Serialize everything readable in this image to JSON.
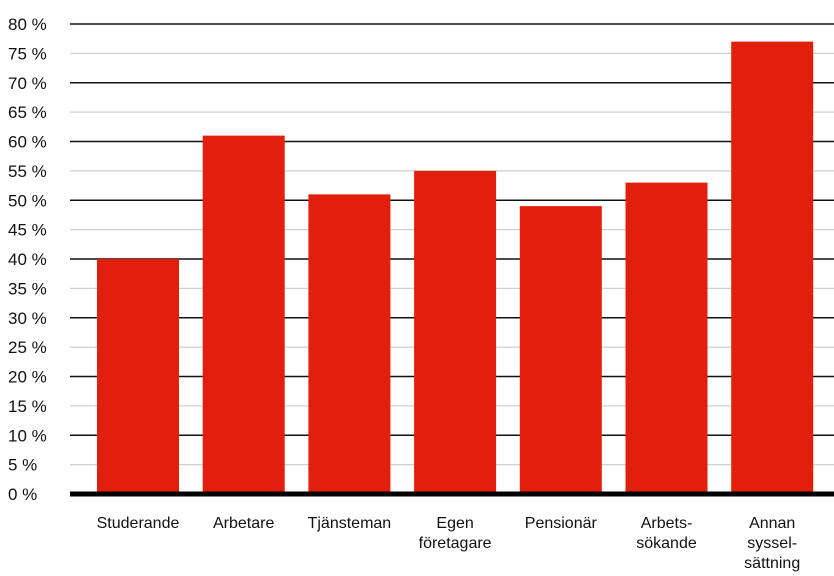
{
  "chart_data": {
    "type": "bar",
    "categories": [
      [
        "Studerande"
      ],
      [
        "Arbetare"
      ],
      [
        "Tjänsteman"
      ],
      [
        "Egen",
        "företagare"
      ],
      [
        "Pensionär"
      ],
      [
        "Arbets-",
        "sökande"
      ],
      [
        "Annan",
        "syssel-",
        "sättning"
      ]
    ],
    "values": [
      40,
      61,
      51,
      55,
      49,
      53,
      77
    ],
    "ylim": [
      0,
      80
    ],
    "ytick_step": 5,
    "ytick_suffix": " %",
    "title": "",
    "xlabel": "",
    "ylabel": "",
    "grid": true,
    "bar_color": "#e21f0c",
    "grid_major_color": "#111111",
    "grid_minor_color": "#cfcfcf",
    "axis_color": "#000000"
  }
}
